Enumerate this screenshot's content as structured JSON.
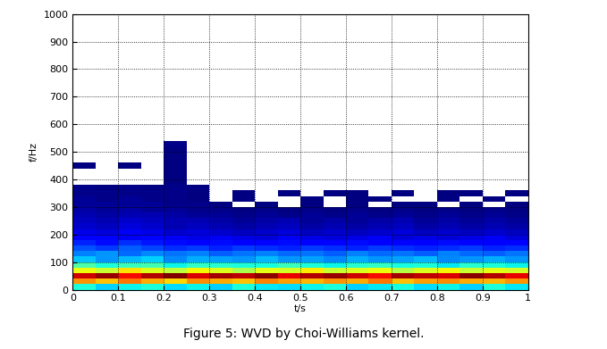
{
  "chart_data": {
    "type": "heatmap",
    "caption": "Figure 5: WVD by Choi-Williams kernel.",
    "x_label": "t/s",
    "y_label": "f/Hz",
    "xlim": [
      0,
      1
    ],
    "xticks": [
      0,
      0.1,
      0.2,
      0.3,
      0.4,
      0.5,
      0.6,
      0.7,
      0.8,
      0.9,
      1
    ],
    "ylim": [
      0,
      1000
    ],
    "yticks": [
      0,
      100,
      200,
      300,
      400,
      500,
      600,
      700,
      800,
      900,
      1000
    ],
    "grid": true,
    "x_bins": [
      0,
      0.05,
      0.1,
      0.15,
      0.2,
      0.25,
      0.3,
      0.35,
      0.4,
      0.45,
      0.5,
      0.55,
      0.6,
      0.65,
      0.7,
      0.75,
      0.8,
      0.85,
      0.9,
      0.95,
      1
    ],
    "y_bins": [
      0,
      20,
      40,
      60,
      80,
      100,
      120,
      140,
      160,
      180,
      200,
      220,
      240,
      260,
      280,
      300,
      320,
      340,
      360,
      380,
      400,
      420,
      440,
      460,
      480,
      500,
      520,
      540
    ],
    "cells": [
      [
        0.4,
        0.35,
        0.38,
        0.4,
        0.36,
        0.38,
        0.35,
        0.4,
        0.37,
        0.36,
        0.38,
        0.4,
        0.35,
        0.37,
        0.39,
        0.36,
        0.38,
        0.35,
        0.4,
        0.37
      ],
      [
        0.72,
        0.68,
        0.75,
        0.7,
        0.66,
        0.73,
        0.7,
        0.68,
        0.74,
        0.71,
        0.69,
        0.72,
        0.7,
        0.75,
        0.68,
        0.71,
        0.73,
        0.7,
        0.69,
        0.72
      ],
      [
        0.88,
        0.92,
        0.85,
        0.9,
        0.94,
        0.87,
        0.91,
        0.89,
        0.93,
        0.86,
        0.9,
        0.92,
        0.88,
        0.85,
        0.91,
        0.89,
        0.87,
        0.93,
        0.9,
        0.86
      ],
      [
        0.62,
        0.58,
        0.65,
        0.6,
        0.57,
        0.63,
        0.6,
        0.55,
        0.61,
        0.59,
        0.64,
        0.58,
        0.6,
        0.62,
        0.56,
        0.6,
        0.63,
        0.58,
        0.61,
        0.59
      ],
      [
        0.45,
        0.4,
        0.43,
        0.44,
        0.38,
        0.42,
        0.41,
        0.4,
        0.39,
        0.43,
        0.4,
        0.38,
        0.41,
        0.42,
        0.39,
        0.4,
        0.37,
        0.41,
        0.4,
        0.38
      ],
      [
        0.34,
        0.3,
        0.33,
        0.35,
        0.29,
        0.32,
        0.31,
        0.3,
        0.33,
        0.3,
        0.31,
        0.29,
        0.32,
        0.3,
        0.31,
        0.33,
        0.29,
        0.3,
        0.32,
        0.3
      ],
      [
        0.28,
        0.3,
        0.26,
        0.29,
        0.27,
        0.28,
        0.25,
        0.27,
        0.28,
        0.26,
        0.27,
        0.25,
        0.28,
        0.26,
        0.27,
        0.25,
        0.28,
        0.26,
        0.25,
        0.27
      ],
      [
        0.24,
        0.22,
        0.25,
        0.23,
        0.21,
        0.22,
        0.2,
        0.22,
        0.21,
        0.2,
        0.22,
        0.21,
        0.2,
        0.22,
        0.21,
        0.2,
        0.21,
        0.22,
        0.2,
        0.21
      ],
      [
        0.2,
        0.18,
        0.21,
        0.19,
        0.18,
        0.17,
        0.18,
        0.16,
        0.17,
        0.18,
        0.16,
        0.17,
        0.18,
        0.16,
        0.17,
        0.16,
        0.18,
        0.17,
        0.16,
        0.17
      ],
      [
        0.17,
        0.16,
        0.15,
        0.17,
        0.15,
        0.14,
        0.15,
        0.14,
        0.13,
        0.15,
        0.14,
        0.13,
        0.14,
        0.15,
        0.13,
        0.14,
        0.13,
        0.14,
        0.15,
        0.13
      ],
      [
        0.14,
        0.13,
        0.15,
        0.14,
        0.12,
        0.13,
        0.12,
        0.11,
        0.12,
        0.13,
        0.11,
        0.12,
        0.11,
        0.12,
        0.13,
        0.11,
        0.12,
        0.11,
        0.12,
        0.11
      ],
      [
        0.12,
        0.11,
        0.13,
        0.12,
        0.1,
        0.11,
        0.1,
        0.09,
        0.1,
        0.11,
        0.09,
        0.1,
        0.09,
        0.1,
        0.11,
        0.09,
        0.1,
        0.09,
        0.1,
        0.09
      ],
      [
        0.11,
        0.1,
        0.12,
        0.11,
        0.1,
        0.1,
        0.09,
        0.08,
        0.09,
        0.1,
        0.08,
        0.09,
        0.08,
        0.09,
        0.1,
        0.08,
        0.09,
        0.08,
        0.09,
        0.08
      ],
      [
        0.1,
        0.09,
        0.1,
        0.1,
        0.09,
        0.08,
        0.08,
        0.07,
        0.08,
        0.07,
        0.08,
        0.07,
        0.08,
        0.07,
        0.08,
        0.07,
        0.08,
        0.07,
        0.08,
        0.07
      ],
      [
        0.09,
        0.08,
        0.09,
        0.08,
        0.08,
        0.07,
        0.07,
        0.06,
        0.07,
        0.06,
        0.07,
        0.06,
        0.07,
        0.06,
        0.07,
        0.06,
        0.07,
        0.06,
        0.07,
        0.06
      ],
      [
        0.08,
        0.08,
        0.08,
        0.08,
        0.07,
        0.07,
        0.06,
        0,
        0.06,
        0,
        0.06,
        0,
        0.06,
        0,
        0.06,
        0.06,
        0,
        0.06,
        0,
        0.06
      ],
      [
        0.08,
        0.07,
        0.08,
        0.07,
        0.07,
        0.06,
        0,
        0.06,
        0,
        0,
        0.06,
        0,
        0.06,
        0.06,
        0,
        0,
        0.06,
        0,
        0.06,
        0
      ],
      [
        0.07,
        0.07,
        0.07,
        0.07,
        0.07,
        0.06,
        0,
        0.06,
        0,
        0.06,
        0,
        0.06,
        0.06,
        0,
        0.06,
        0,
        0.06,
        0.06,
        0,
        0.06
      ],
      [
        0.07,
        0.06,
        0.07,
        0.06,
        0.07,
        0.06,
        0,
        0,
        0,
        0,
        0,
        0,
        0,
        0,
        0,
        0,
        0,
        0,
        0,
        0
      ],
      [
        0,
        0,
        0,
        0,
        0.06,
        0,
        0,
        0,
        0,
        0,
        0,
        0,
        0,
        0,
        0,
        0,
        0,
        0,
        0,
        0
      ],
      [
        0,
        0,
        0,
        0,
        0.06,
        0,
        0,
        0,
        0,
        0,
        0,
        0,
        0,
        0,
        0,
        0,
        0,
        0,
        0,
        0
      ],
      [
        0,
        0,
        0,
        0,
        0.06,
        0,
        0,
        0,
        0,
        0,
        0,
        0,
        0,
        0,
        0,
        0,
        0,
        0,
        0,
        0
      ],
      [
        0.06,
        0,
        0.06,
        0,
        0.06,
        0,
        0,
        0,
        0,
        0,
        0,
        0,
        0,
        0,
        0,
        0,
        0,
        0,
        0,
        0
      ],
      [
        0,
        0,
        0,
        0,
        0.06,
        0,
        0,
        0,
        0,
        0,
        0,
        0,
        0,
        0,
        0,
        0,
        0,
        0,
        0,
        0
      ],
      [
        0,
        0,
        0,
        0,
        0.06,
        0,
        0,
        0,
        0,
        0,
        0,
        0,
        0,
        0,
        0,
        0,
        0,
        0,
        0,
        0
      ],
      [
        0,
        0,
        0,
        0,
        0.06,
        0,
        0,
        0,
        0,
        0,
        0,
        0,
        0,
        0,
        0,
        0,
        0,
        0,
        0,
        0
      ],
      [
        0,
        0,
        0,
        0,
        0.07,
        0,
        0,
        0,
        0,
        0,
        0,
        0,
        0,
        0,
        0,
        0,
        0,
        0,
        0,
        0
      ]
    ]
  }
}
